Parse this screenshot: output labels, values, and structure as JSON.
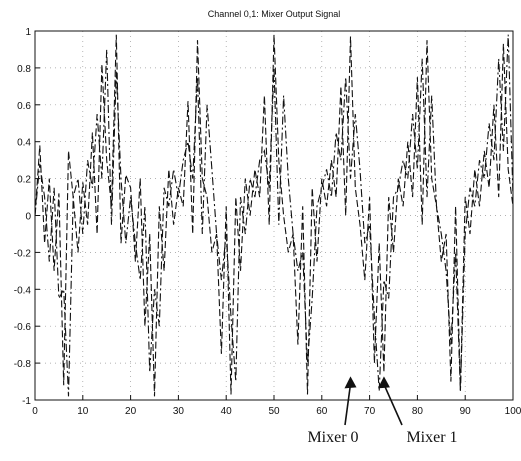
{
  "chart_data": {
    "type": "line",
    "title": "Channel 0,1:  Mixer Output Signal",
    "xlabel": "",
    "ylabel": "",
    "xlim": [
      0,
      100
    ],
    "ylim": [
      -1,
      1
    ],
    "xticks": [
      0,
      10,
      20,
      30,
      40,
      50,
      60,
      70,
      80,
      90,
      100
    ],
    "yticks": [
      -1,
      -0.8,
      -0.6,
      -0.4,
      -0.2,
      0,
      0.2,
      0.4,
      0.6,
      0.8,
      1
    ],
    "ytick_labels": [
      "-1",
      "-0.8",
      "-0.6",
      "-0.4",
      "-0.2",
      "0",
      "0.2",
      "0.4",
      "0.6",
      "0.8",
      "1"
    ],
    "grid": "dotted",
    "series": [
      {
        "id": "mixer-0",
        "style": "dashed",
        "x": [
          0,
          1,
          2,
          3,
          4,
          5,
          6,
          7,
          8,
          9,
          10,
          11,
          12,
          13,
          14,
          15,
          16,
          17,
          18,
          19,
          20,
          21,
          22,
          23,
          24,
          25,
          26,
          27,
          28,
          29,
          30,
          31,
          32,
          33,
          34,
          35,
          36,
          37,
          38,
          39,
          40,
          41,
          42,
          43,
          44,
          45,
          46,
          47,
          48,
          49,
          50,
          51,
          52,
          53,
          54,
          55,
          56,
          57,
          58,
          59,
          60,
          61,
          62,
          63,
          64,
          65,
          66,
          67,
          68,
          69,
          70,
          71,
          72,
          73,
          74,
          75,
          76,
          77,
          78,
          79,
          80,
          81,
          82,
          83,
          84,
          85,
          86,
          87,
          88,
          89,
          90,
          91,
          92,
          93,
          94,
          95,
          96,
          97,
          98,
          99,
          100
        ],
        "y": [
          0.0,
          0.38,
          -0.15,
          0.2,
          -0.3,
          0.12,
          -0.92,
          0.35,
          0.1,
          -0.2,
          0.18,
          -0.05,
          0.45,
          -0.1,
          0.82,
          0.3,
          0.05,
          0.98,
          -0.15,
          0.22,
          0.15,
          -0.25,
          0.2,
          -0.6,
          -0.1,
          -0.98,
          0.05,
          -0.3,
          0.25,
          -0.05,
          0.15,
          0.05,
          0.62,
          -0.1,
          0.95,
          0.2,
          0.1,
          -0.2,
          -0.1,
          -0.75,
          0.05,
          -0.97,
          0.1,
          -0.3,
          0.2,
          0.0,
          0.25,
          0.1,
          0.65,
          -0.05,
          0.98,
          0.3,
          0.0,
          -0.2,
          -0.1,
          -0.7,
          0.05,
          -0.97,
          0.15,
          -0.25,
          0.2,
          0.05,
          0.3,
          0.1,
          0.7,
          0.0,
          0.97,
          0.15,
          -0.05,
          -0.35,
          0.1,
          -0.8,
          -0.15,
          -0.85,
          0.1,
          -0.2,
          0.2,
          0.05,
          0.4,
          0.1,
          0.75,
          -0.05,
          0.95,
          0.2,
          0.05,
          -0.25,
          -0.1,
          -0.9,
          0.05,
          -0.95,
          0.1,
          -0.1,
          0.25,
          0.05,
          0.35,
          0.15,
          0.6,
          0.1,
          0.93,
          0.25,
          0.05
        ]
      },
      {
        "id": "mixer-1",
        "style": "dash-dot",
        "x": [
          0,
          1,
          2,
          3,
          4,
          5,
          6,
          7,
          8,
          9,
          10,
          11,
          12,
          13,
          14,
          15,
          16,
          17,
          18,
          19,
          20,
          21,
          22,
          23,
          24,
          25,
          26,
          27,
          28,
          29,
          30,
          31,
          32,
          33,
          34,
          35,
          36,
          37,
          38,
          39,
          40,
          41,
          42,
          43,
          44,
          45,
          46,
          47,
          48,
          49,
          50,
          51,
          52,
          53,
          54,
          55,
          56,
          57,
          58,
          59,
          60,
          61,
          62,
          63,
          64,
          65,
          66,
          67,
          68,
          69,
          70,
          71,
          72,
          73,
          74,
          75,
          76,
          77,
          78,
          79,
          80,
          81,
          82,
          83,
          84,
          85,
          86,
          87,
          88,
          89,
          90,
          91,
          92,
          93,
          94,
          95,
          96,
          97,
          98,
          99,
          100
        ],
        "y": [
          0.0,
          0.28,
          0.1,
          -0.25,
          0.15,
          -0.45,
          -0.4,
          -0.98,
          0.1,
          0.2,
          -0.1,
          0.3,
          0.15,
          0.55,
          0.2,
          0.9,
          -0.05,
          0.78,
          0.2,
          -0.15,
          0.1,
          -0.15,
          -0.35,
          0.05,
          -0.85,
          -0.4,
          -0.6,
          0.15,
          0.05,
          0.25,
          0.1,
          0.3,
          0.4,
          0.2,
          0.75,
          -0.1,
          0.6,
          0.25,
          -0.1,
          -0.35,
          -0.1,
          -0.55,
          -0.9,
          0.1,
          -0.1,
          0.2,
          0.1,
          0.3,
          0.35,
          0.15,
          0.8,
          -0.05,
          0.65,
          0.2,
          -0.1,
          -0.3,
          -0.2,
          -0.8,
          -0.45,
          0.05,
          0.15,
          0.25,
          0.1,
          0.45,
          0.3,
          0.75,
          0.2,
          0.55,
          0.25,
          -0.15,
          -0.05,
          -0.55,
          -0.95,
          -0.35,
          -0.45,
          0.1,
          0.15,
          0.3,
          0.2,
          0.55,
          0.25,
          0.85,
          0.1,
          0.65,
          0.05,
          -0.1,
          -0.3,
          -0.7,
          -0.2,
          -0.95,
          -0.1,
          0.15,
          0.05,
          0.3,
          0.2,
          0.5,
          0.3,
          0.85,
          0.35,
          0.98,
          0.1
        ]
      }
    ],
    "annotations": [
      {
        "text": "Mixer 0",
        "arrow_to": {
          "x": 66,
          "y": -0.85
        }
      },
      {
        "text": "Mixer 1",
        "arrow_to": {
          "x": 73,
          "y": -0.85
        }
      }
    ]
  }
}
